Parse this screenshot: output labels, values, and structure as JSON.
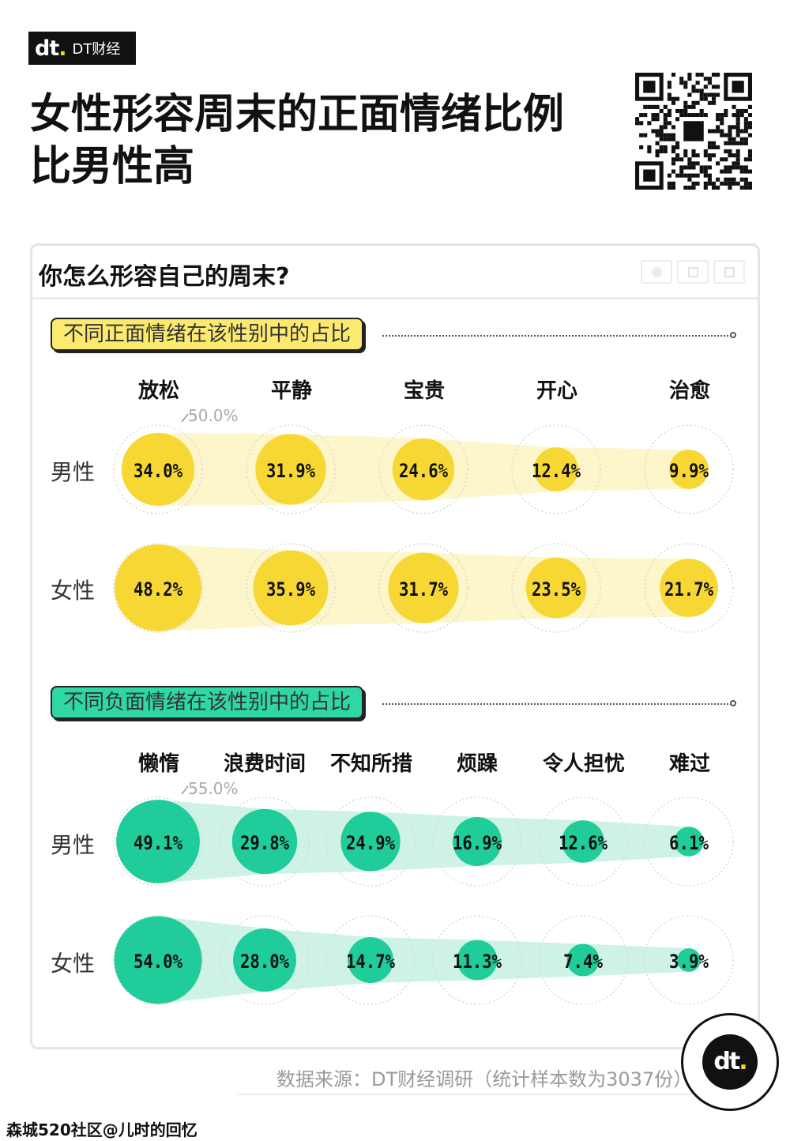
{
  "brand": {
    "name": "DT财经",
    "mark": "dt"
  },
  "main_title": [
    "女性形容周末的正面情绪比例",
    "比男性高"
  ],
  "card": {
    "title": "你怎么形容自己的周末?",
    "window_buttons": [
      "circle",
      "square",
      "copy"
    ]
  },
  "colors": {
    "positive": "#f7d733",
    "positive_band": "#fdf5c4",
    "negative": "#1fcc9a",
    "negative_band": "#c9f2e3",
    "label_yellow_bg": "#fbe970",
    "label_green_bg": "#2fd7a5"
  },
  "chart_data": [
    {
      "type": "bubble",
      "title": "不同正面情绪在该性别中的占比",
      "categories": [
        "放松",
        "平静",
        "宝贵",
        "开心",
        "治愈"
      ],
      "reference_label": "50.0%",
      "reference_value": 50.0,
      "unit": "%",
      "series": [
        {
          "name": "男性",
          "values": [
            34.0,
            31.9,
            24.6,
            12.4,
            9.9
          ],
          "labels": [
            "34.0%",
            "31.9%",
            "24.6%",
            "12.4%",
            "9.9%"
          ]
        },
        {
          "name": "女性",
          "values": [
            48.2,
            35.9,
            31.7,
            23.5,
            21.7
          ],
          "labels": [
            "48.2%",
            "35.9%",
            "31.7%",
            "23.5%",
            "21.7%"
          ]
        }
      ]
    },
    {
      "type": "bubble",
      "title": "不同负面情绪在该性别中的占比",
      "categories": [
        "懒惰",
        "浪费时间",
        "不知所措",
        "烦躁",
        "令人担忧",
        "难过"
      ],
      "reference_label": "55.0%",
      "reference_value": 55.0,
      "unit": "%",
      "series": [
        {
          "name": "男性",
          "values": [
            49.1,
            29.8,
            24.9,
            16.9,
            12.6,
            6.1
          ],
          "labels": [
            "49.1%",
            "29.8%",
            "24.9%",
            "16.9%",
            "12.6%",
            "6.1%"
          ]
        },
        {
          "name": "女性",
          "values": [
            54.0,
            28.0,
            14.7,
            11.3,
            7.4,
            3.9
          ],
          "labels": [
            "54.0%",
            "28.0%",
            "14.7%",
            "11.3%",
            "7.4%",
            "3.9%"
          ]
        }
      ]
    }
  ],
  "source": "数据来源：DT财经调研（统计样本数为3037份）",
  "watermark": "森城520社区@儿时的回忆"
}
